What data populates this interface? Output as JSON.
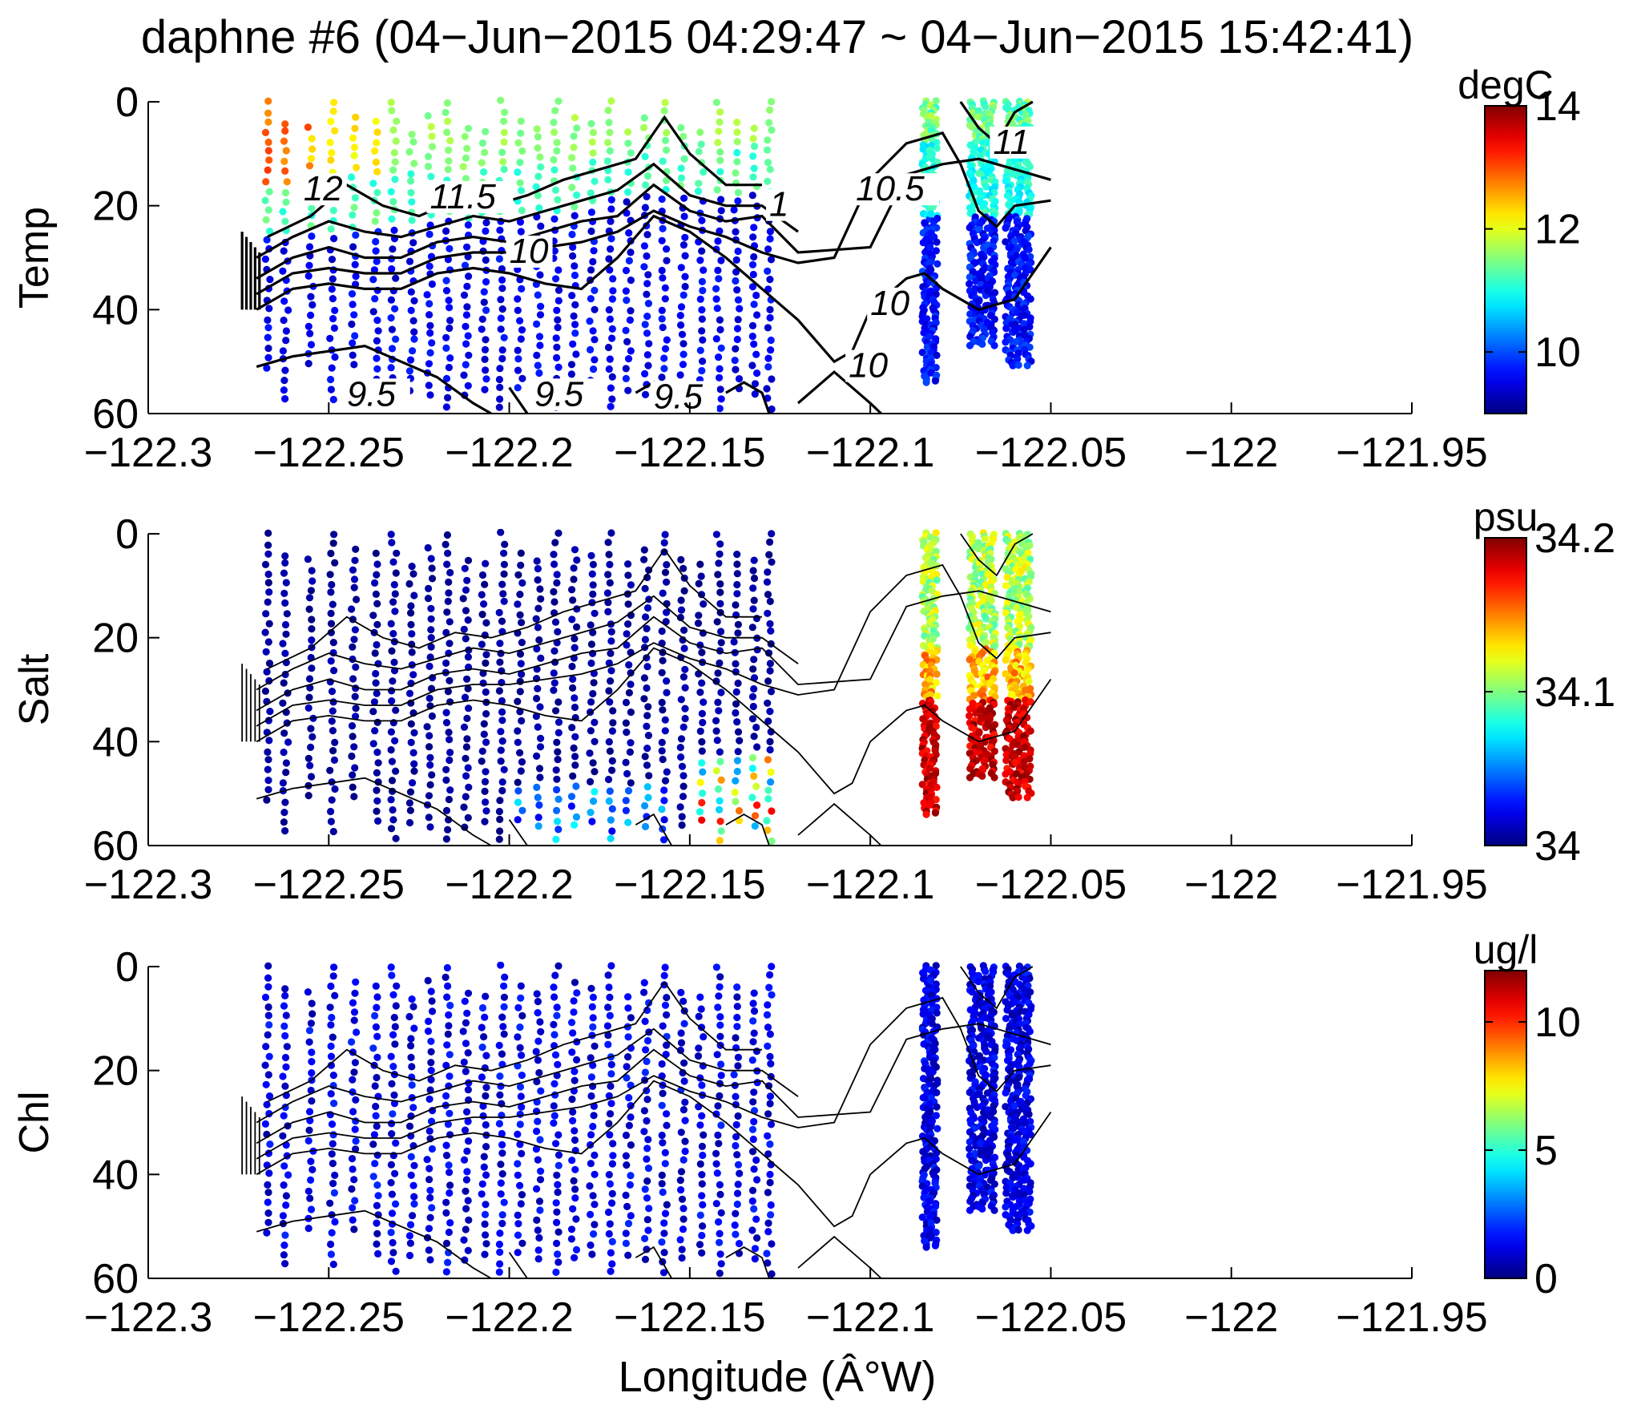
{
  "chart_data": {
    "type": "scatter",
    "title": "daphne #6 (04−Jun−2015 04:29:47 ~ 04−Jun−2015 15:42:41)",
    "xlabel": "Longitude (Â°W)",
    "xlim": [
      -122.3,
      -121.95
    ],
    "ylim": [
      60,
      0
    ],
    "x_tick_values": [
      -122.3,
      -122.25,
      -122.2,
      -122.15,
      -122.1,
      -122.05,
      -122,
      -121.95
    ],
    "x_tick_labels": [
      "−122.3",
      "−122.25",
      "−122.2",
      "−122.15",
      "−122.1",
      "−122.05",
      "−122",
      "−121.95"
    ],
    "y_tick_values": [
      0,
      20,
      40,
      60
    ],
    "y_tick_labels": [
      "0",
      "20",
      "40",
      "60"
    ],
    "grid": false,
    "contours": [
      {
        "level": "12",
        "points": [
          [
            -122.267,
            26
          ],
          [
            -122.255,
            22
          ],
          [
            -122.245,
            16
          ],
          [
            -122.235,
            20
          ],
          [
            -122.225,
            22
          ],
          [
            -122.215,
            19
          ],
          [
            -122.205,
            20
          ],
          [
            -122.195,
            18
          ],
          [
            -122.185,
            15
          ],
          [
            -122.175,
            13
          ],
          [
            -122.165,
            11
          ],
          [
            -122.157,
            3
          ],
          [
            -122.15,
            10
          ],
          [
            -122.14,
            16
          ],
          [
            -122.13,
            16
          ]
        ]
      },
      {
        "level": "11.5",
        "points": [
          [
            -122.27,
            30
          ],
          [
            -122.26,
            26
          ],
          [
            -122.25,
            23
          ],
          [
            -122.24,
            25
          ],
          [
            -122.23,
            26
          ],
          [
            -122.22,
            24
          ],
          [
            -122.21,
            22
          ],
          [
            -122.2,
            23
          ],
          [
            -122.19,
            21
          ],
          [
            -122.18,
            19
          ],
          [
            -122.17,
            17
          ],
          [
            -122.16,
            12
          ],
          [
            -122.15,
            18
          ],
          [
            -122.14,
            20
          ],
          [
            -122.13,
            20
          ],
          [
            -122.12,
            25
          ]
        ]
      },
      {
        "level": "11",
        "points": [
          [
            -122.27,
            34
          ],
          [
            -122.26,
            30
          ],
          [
            -122.25,
            28
          ],
          [
            -122.24,
            30
          ],
          [
            -122.23,
            30
          ],
          [
            -122.22,
            27
          ],
          [
            -122.21,
            26
          ],
          [
            -122.2,
            27
          ],
          [
            -122.19,
            25
          ],
          [
            -122.18,
            23
          ],
          [
            -122.17,
            22
          ],
          [
            -122.16,
            16
          ],
          [
            -122.15,
            21
          ],
          [
            -122.14,
            23
          ],
          [
            -122.13,
            22
          ],
          [
            -122.12,
            29
          ],
          [
            -122.1,
            28
          ],
          [
            -122.09,
            14
          ],
          [
            -122.08,
            12
          ],
          [
            -122.07,
            11
          ],
          [
            -122.06,
            13
          ],
          [
            -122.05,
            15
          ]
        ]
      },
      {
        "level": "10.5",
        "points": [
          [
            -122.27,
            37
          ],
          [
            -122.26,
            33
          ],
          [
            -122.25,
            32
          ],
          [
            -122.24,
            33
          ],
          [
            -122.23,
            33
          ],
          [
            -122.22,
            30
          ],
          [
            -122.21,
            29
          ],
          [
            -122.2,
            29
          ],
          [
            -122.19,
            28
          ],
          [
            -122.18,
            27
          ],
          [
            -122.17,
            25
          ],
          [
            -122.16,
            21
          ],
          [
            -122.15,
            24
          ],
          [
            -122.14,
            26
          ],
          [
            -122.13,
            29
          ],
          [
            -122.12,
            31
          ],
          [
            -122.11,
            30
          ],
          [
            -122.1,
            15
          ],
          [
            -122.09,
            8
          ],
          [
            -122.08,
            6
          ],
          [
            -122.075,
            12
          ],
          [
            -122.07,
            21
          ],
          [
            -122.065,
            24
          ],
          [
            -122.06,
            20
          ],
          [
            -122.05,
            19
          ]
        ]
      },
      {
        "level": "10",
        "points": [
          [
            -122.27,
            40
          ],
          [
            -122.26,
            36
          ],
          [
            -122.25,
            35
          ],
          [
            -122.24,
            36
          ],
          [
            -122.23,
            36
          ],
          [
            -122.22,
            33
          ],
          [
            -122.21,
            32
          ],
          [
            -122.2,
            33
          ],
          [
            -122.19,
            35
          ],
          [
            -122.18,
            36
          ],
          [
            -122.17,
            30
          ],
          [
            -122.16,
            22
          ],
          [
            -122.15,
            25
          ],
          [
            -122.14,
            30
          ],
          [
            -122.13,
            36
          ],
          [
            -122.12,
            42
          ],
          [
            -122.11,
            50
          ],
          [
            -122.105,
            48
          ],
          [
            -122.1,
            40
          ],
          [
            -122.09,
            34
          ],
          [
            -122.085,
            33
          ],
          [
            -122.08,
            36
          ],
          [
            -122.07,
            40
          ],
          [
            -122.06,
            38
          ],
          [
            -122.05,
            28
          ]
        ]
      },
      {
        "level": "10",
        "points": [
          [
            -122.12,
            58
          ],
          [
            -122.11,
            52
          ],
          [
            -122.1,
            58
          ],
          [
            -122.097,
            60
          ]
        ]
      },
      {
        "level": "9.5",
        "points": [
          [
            -122.27,
            51
          ],
          [
            -122.26,
            49
          ],
          [
            -122.25,
            48
          ],
          [
            -122.24,
            47
          ],
          [
            -122.23,
            50
          ],
          [
            -122.22,
            53
          ],
          [
            -122.21,
            58
          ],
          [
            -122.205,
            60
          ]
        ]
      },
      {
        "level": "",
        "points": [
          [
            -122.2,
            55
          ],
          [
            -122.195,
            60
          ]
        ]
      },
      {
        "level": "",
        "points": [
          [
            -122.165,
            56
          ],
          [
            -122.16,
            54
          ],
          [
            -122.155,
            60
          ]
        ]
      },
      {
        "level": "",
        "points": [
          [
            -122.14,
            56
          ],
          [
            -122.135,
            54
          ],
          [
            -122.13,
            56
          ],
          [
            -122.128,
            60
          ]
        ]
      },
      {
        "level": "",
        "points": [
          [
            -122.075,
            0
          ],
          [
            -122.07,
            5
          ],
          [
            -122.065,
            8
          ],
          [
            -122.06,
            2
          ],
          [
            -122.055,
            0
          ]
        ]
      }
    ],
    "panels": [
      {
        "name": "Temp",
        "ylabel": "Temp",
        "units": "degC",
        "clim": [
          9,
          14
        ],
        "colorbar_tick_values": [
          10,
          12,
          14
        ],
        "colorbar_tick_labels": [
          "10",
          "12",
          "14"
        ],
        "contour_labels": [
          {
            "text": "12",
            "x": -122.257,
            "y": 19
          },
          {
            "text": "11.5",
            "x": -122.222,
            "y": 20.5
          },
          {
            "text": "10",
            "x": -122.2,
            "y": 31
          },
          {
            "text": "1",
            "x": -122.128,
            "y": 22
          },
          {
            "text": "10.5",
            "x": -122.104,
            "y": 19
          },
          {
            "text": "11",
            "x": -122.066,
            "y": 10
          },
          {
            "text": "10",
            "x": -122.1,
            "y": 41
          },
          {
            "text": "10",
            "x": -122.106,
            "y": 53
          },
          {
            "text": "9.5",
            "x": -122.245,
            "y": 58.5
          },
          {
            "text": "9.5",
            "x": -122.193,
            "y": 58.5
          },
          {
            "text": "9.5",
            "x": -122.16,
            "y": 59
          }
        ]
      },
      {
        "name": "Salt",
        "ylabel": "Salt",
        "units": "psu",
        "clim": [
          34,
          34.2
        ],
        "colorbar_tick_values": [
          34,
          34.1,
          34.2
        ],
        "colorbar_tick_labels": [
          "34",
          "34.1",
          "34.2"
        ],
        "contour_labels": []
      },
      {
        "name": "Chl",
        "ylabel": "Chl",
        "units": "ug/l",
        "clim": [
          0,
          12
        ],
        "colorbar_tick_values": [
          0,
          5,
          10
        ],
        "colorbar_tick_labels": [
          "0",
          "5",
          "10"
        ],
        "contour_labels": []
      }
    ],
    "station_longitudes": [
      -122.267,
      -122.262,
      -122.255,
      -122.249,
      -122.243,
      -122.237,
      -122.232,
      -122.227,
      -122.222,
      -122.217,
      -122.212,
      -122.207,
      -122.202,
      -122.197,
      -122.192,
      -122.187,
      -122.182,
      -122.177,
      -122.172,
      -122.167,
      -122.162,
      -122.157,
      -122.152,
      -122.147,
      -122.142,
      -122.137,
      -122.132,
      -122.128
    ],
    "east_station_longitudes": [
      -122.0845,
      -122.0825,
      -122.0715,
      -122.069,
      -122.0665,
      -122.0615,
      -122.059,
      -122.0565
    ]
  }
}
